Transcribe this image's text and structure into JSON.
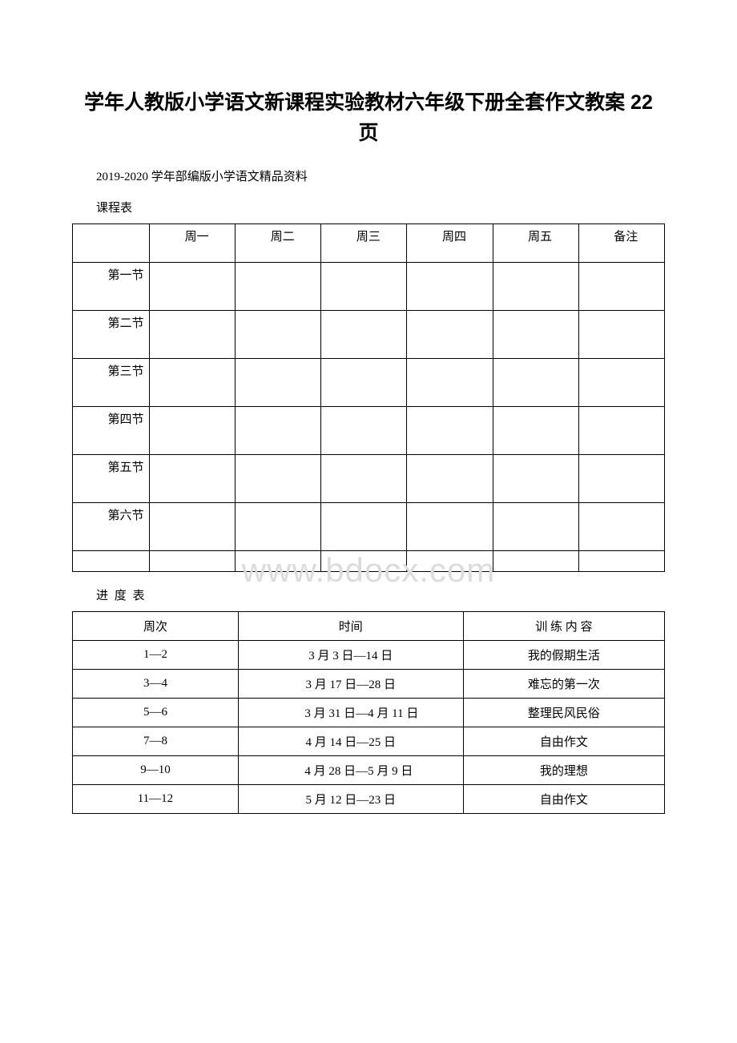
{
  "title": "学年人教版小学语文新课程实验教材六年级下册全套作文教案 22 页",
  "subtitle": "2019-2020 学年部编版小学语文精品资料",
  "watermark": "www.bdocx.com",
  "schedule": {
    "label": "课程表",
    "headers": [
      "",
      "周一",
      "周二",
      "周三",
      "周四",
      "周五",
      "备注"
    ],
    "periods": [
      "第一节",
      "第二节",
      "第三节",
      "第四节",
      "第五节",
      "第六节",
      ""
    ]
  },
  "progress": {
    "label": "进 度 表",
    "headers": [
      "周次",
      "时间",
      "训 练 内 容"
    ],
    "rows": [
      {
        "week": "1—2",
        "time": "3 月 3 日—14 日",
        "content": "我的假期生活",
        "wrap": false
      },
      {
        "week": "3—4",
        "time": "3 月 17 日—28 日",
        "content": "难忘的第一次",
        "wrap": false
      },
      {
        "week": "5—6",
        "time": "3 月 31 日—4 月 11 日",
        "content": "整理民风民俗",
        "wrap": true
      },
      {
        "week": "7—8",
        "time": "4 月 14 日—25 日",
        "content": "自由作文",
        "wrap": false
      },
      {
        "week": "9—10",
        "time": "4 月 28 日—5 月 9 日",
        "content": "我的理想",
        "wrap": true
      },
      {
        "week": "11—12",
        "time": "5 月 12 日—23 日",
        "content": "自由作文",
        "wrap": false
      }
    ]
  },
  "colors": {
    "background": "#ffffff",
    "text": "#000000",
    "border": "#000000",
    "watermark": "#dcdcdc"
  }
}
